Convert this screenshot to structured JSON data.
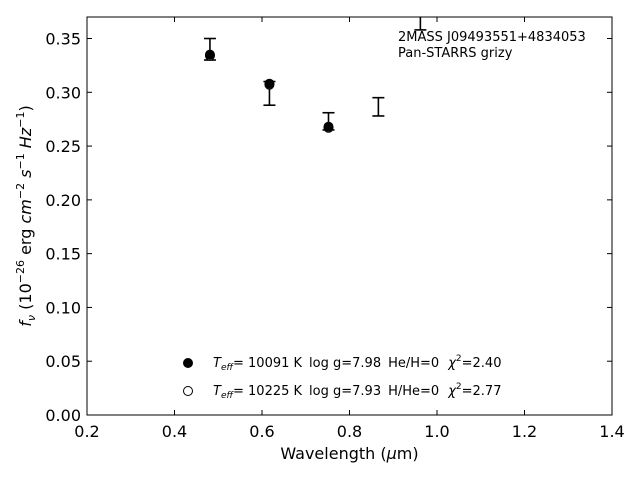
{
  "chart_data": {
    "type": "scatter",
    "xlim": [
      0.2,
      1.4
    ],
    "ylim": [
      0.0,
      0.37
    ],
    "xticks": [
      0.2,
      0.4,
      0.6,
      0.8,
      1.0,
      1.2,
      1.4
    ],
    "xtick_labels": [
      "0.2",
      "0.4",
      "0.6",
      "0.8",
      "1.0",
      "1.2",
      "1.4"
    ],
    "yticks": [
      0.0,
      0.05,
      0.1,
      0.15,
      0.2,
      0.25,
      0.3,
      0.35
    ],
    "ytick_labels": [
      "0.00",
      "0.05",
      "0.10",
      "0.15",
      "0.20",
      "0.25",
      "0.30",
      "0.35"
    ],
    "grid": false,
    "xlabel": {
      "pre": "Wavelength (",
      "mu": "μ",
      "post": "m)"
    },
    "ylabel": {
      "f": "f",
      "nu": "ν",
      "open": " (10",
      "exp1": "−26",
      "erg": " erg ",
      "cm": "cm",
      "exp2": "−2",
      "s": " s",
      "exp3": "−1",
      "hz": " Hz",
      "exp4": "−1",
      "close": ")"
    },
    "annotation": [
      "2MASS J09493551+4834053",
      "Pan-STARRS grizy"
    ],
    "observed": [
      {
        "x": 0.481,
        "y": 0.34,
        "err": 0.01
      },
      {
        "x": 0.617,
        "y": 0.299,
        "err": 0.011
      },
      {
        "x": 0.752,
        "y": 0.273,
        "err": 0.008
      },
      {
        "x": 0.866,
        "y": 0.2865,
        "err": 0.0085
      },
      {
        "x": 0.962,
        "y": 0.37,
        "err": 0.012
      }
    ],
    "series": [
      {
        "name": "He/H=0 fit",
        "marker": "filled",
        "points": [
          {
            "x": 0.481,
            "y": 0.335
          },
          {
            "x": 0.617,
            "y": 0.308
          },
          {
            "x": 0.752,
            "y": 0.268
          }
        ]
      },
      {
        "name": "H/He=0 fit",
        "marker": "open",
        "points": [
          {
            "x": 0.481,
            "y": 0.334
          },
          {
            "x": 0.617,
            "y": 0.307
          },
          {
            "x": 0.752,
            "y": 0.267
          }
        ]
      }
    ],
    "legend": {
      "placement": "lower-center",
      "entries": [
        {
          "marker": "filled",
          "T": "T",
          "eff": "eff",
          "temp": "= 10091 K",
          "logg": "log g=7.98",
          "comp": "He/H=0",
          "chi": "χ",
          "chi_exp": "2",
          "chi_val": "=2.40"
        },
        {
          "marker": "open",
          "T": "T",
          "eff": "eff",
          "temp": "= 10225 K",
          "logg": "log g=7.93",
          "comp": "H/He=0",
          "chi": "χ",
          "chi_exp": "2",
          "chi_val": "=2.77"
        }
      ]
    }
  }
}
